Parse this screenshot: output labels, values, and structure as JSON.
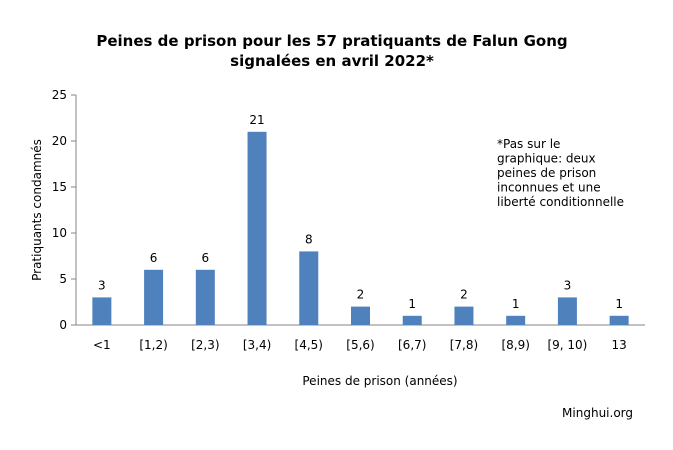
{
  "chart_data": {
    "type": "bar",
    "title": [
      "Peines de prison pour les 57 pratiquants de Falun Gong",
      "signalées en avril 2022*"
    ],
    "xlabel": "Peines de prison (années)",
    "ylabel": "Pratiquants condamnés",
    "categories": [
      "<1",
      "[1,2)",
      "[2,3)",
      "[3,4)",
      "[4,5)",
      "[5,6)",
      "[6,7)",
      "[7,8)",
      "[8,9)",
      "[9, 10)",
      "13"
    ],
    "values": [
      3,
      6,
      6,
      21,
      8,
      2,
      1,
      2,
      1,
      3,
      1
    ],
    "ylim": [
      0,
      25
    ],
    "yticks": [
      0,
      5,
      10,
      15,
      20,
      25
    ],
    "grid": false,
    "legend": "none",
    "bar_color": "#4f81bd",
    "annotation": [
      "*Pas sur le",
      "graphique: deux",
      "peines de prison",
      "inconnues et une",
      "liberté conditionnelle"
    ],
    "source": "Minghui.org"
  }
}
